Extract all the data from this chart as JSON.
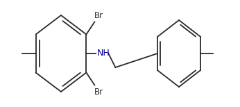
{
  "bg_color": "#ffffff",
  "line_color": "#2a2a2a",
  "nh_color": "#00008B",
  "line_width": 1.3,
  "doff": 0.012,
  "shrink": 0.12,
  "r1cx": 0.255,
  "r1cy": 0.5,
  "r1rx": 0.115,
  "r1ry": 0.36,
  "r2cx": 0.735,
  "r2cy": 0.5,
  "r2rx": 0.075,
  "r2ry": 0.3,
  "br_top_label": "Br",
  "br_bot_label": "Br",
  "nh_label": "NH",
  "fs_br": 8.5,
  "fs_nh": 9.0
}
